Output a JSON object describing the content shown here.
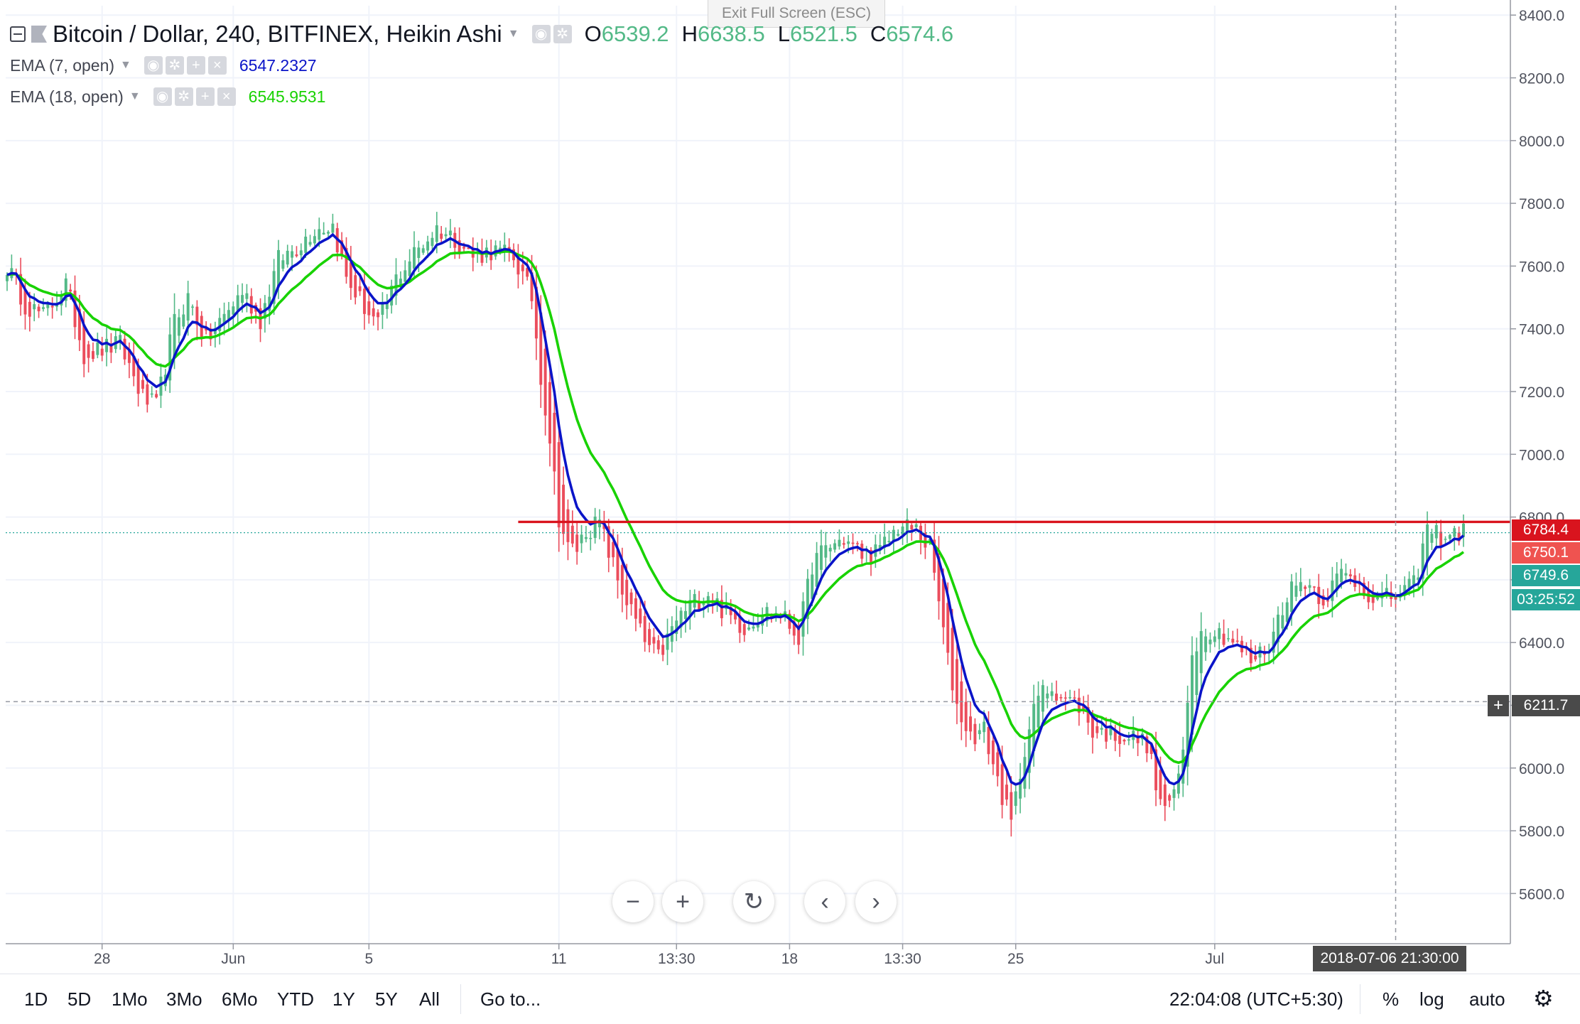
{
  "header": {
    "symbol_title": "Bitcoin / Dollar, 240, BITFINEX, Heikin Ashi",
    "ohlc": [
      {
        "label": "O",
        "value": "6539.2"
      },
      {
        "label": "H",
        "value": "6638.5"
      },
      {
        "label": "L",
        "value": "6521.5"
      },
      {
        "label": "C",
        "value": "6574.6"
      }
    ],
    "exit_fullscreen": "Exit Full Screen (ESC)"
  },
  "indicators": [
    {
      "label": "EMA (7, open)",
      "value": "6547.2327",
      "color": "#0a14c8"
    },
    {
      "label": "EMA (18, open)",
      "value": "6545.9531",
      "color": "#18d200"
    }
  ],
  "price_tags": [
    {
      "value": "6784.4",
      "color": "#d9141e"
    },
    {
      "value": "6750.1",
      "color": "#ef5350"
    },
    {
      "value": "6749.6",
      "color": "#26a69a"
    },
    {
      "value": "03:25:52",
      "color": "#26a69a"
    },
    {
      "value": "6211.7",
      "color": "#4a4a4a"
    }
  ],
  "crosshair_date": "2018-07-06 21:30:00",
  "controls": {
    "zoom_out": "−",
    "zoom_in": "+",
    "reset": "↻",
    "scroll_left": "‹",
    "scroll_right": "›"
  },
  "bottom_bar": {
    "timeframes": [
      "1D",
      "5D",
      "1Mo",
      "3Mo",
      "6Mo",
      "YTD",
      "1Y",
      "5Y",
      "All"
    ],
    "goto": "Go to...",
    "clock": "22:04:08 (UTC+5:30)",
    "percent": "%",
    "log": "log",
    "auto": "auto",
    "settings_icon": "gear-icon"
  },
  "chart_data": {
    "type": "candlestick",
    "title": "Bitcoin / Dollar, 240, BITFINEX, Heikin Ashi",
    "y_ticks": [
      5600,
      5800,
      6000,
      6200,
      6400,
      6600,
      6800,
      7000,
      7200,
      7400,
      7600,
      7800,
      8000,
      8200,
      8400
    ],
    "y_tick_labels": [
      "5600.0",
      "5800.0",
      "6000.0",
      "6200.0",
      "6400.0",
      "6600.0",
      "6800.0",
      "7000.0",
      "7200.0",
      "7400.0",
      "7600.0",
      "7800.0",
      "8000.0",
      "8200.0",
      "8400.0"
    ],
    "ylim": [
      5440,
      8430
    ],
    "x_labels": [
      {
        "label": "28",
        "bar": 21
      },
      {
        "label": "Jun",
        "bar": 50
      },
      {
        "label": "5",
        "bar": 80
      },
      {
        "label": "11",
        "bar": 122
      },
      {
        "label": "13:30",
        "bar": 148
      },
      {
        "label": "18",
        "bar": 173
      },
      {
        "label": "13:30",
        "bar": 198
      },
      {
        "label": "25",
        "bar": 223
      },
      {
        "label": "Jul",
        "bar": 267
      },
      {
        "label": "2018-07-06 21:30:00",
        "bar": 307
      }
    ],
    "bar_count": 323,
    "grid": true,
    "colors": {
      "up": "#53b987",
      "down": "#eb4d5c",
      "ema7": "#0a14c8",
      "ema18": "#18d200",
      "resistance": "#d9141e"
    },
    "resistance_line": {
      "price": 6784.4,
      "from_bar": 113
    },
    "anchor_closes": [
      [
        0,
        7600
      ],
      [
        4,
        7480
      ],
      [
        8,
        7440
      ],
      [
        13,
        7540
      ],
      [
        17,
        7320
      ],
      [
        25,
        7350
      ],
      [
        30,
        7180
      ],
      [
        33,
        7150
      ],
      [
        37,
        7420
      ],
      [
        40,
        7500
      ],
      [
        44,
        7360
      ],
      [
        48,
        7440
      ],
      [
        52,
        7520
      ],
      [
        56,
        7430
      ],
      [
        60,
        7620
      ],
      [
        64,
        7660
      ],
      [
        68,
        7720
      ],
      [
        72,
        7730
      ],
      [
        75,
        7560
      ],
      [
        79,
        7470
      ],
      [
        82,
        7410
      ],
      [
        86,
        7560
      ],
      [
        90,
        7640
      ],
      [
        95,
        7720
      ],
      [
        99,
        7690
      ],
      [
        103,
        7630
      ],
      [
        107,
        7650
      ],
      [
        112,
        7630
      ],
      [
        116,
        7500
      ],
      [
        118,
        7250
      ],
      [
        120,
        7050
      ],
      [
        122,
        6800
      ],
      [
        124,
        6700
      ],
      [
        126,
        6700
      ],
      [
        128,
        6760
      ],
      [
        131,
        6780
      ],
      [
        135,
        6600
      ],
      [
        138,
        6500
      ],
      [
        141,
        6400
      ],
      [
        144,
        6350
      ],
      [
        148,
        6470
      ],
      [
        151,
        6520
      ],
      [
        155,
        6560
      ],
      [
        159,
        6490
      ],
      [
        163,
        6450
      ],
      [
        167,
        6500
      ],
      [
        171,
        6490
      ],
      [
        175,
        6420
      ],
      [
        178,
        6650
      ],
      [
        181,
        6700
      ],
      [
        185,
        6730
      ],
      [
        189,
        6680
      ],
      [
        193,
        6690
      ],
      [
        197,
        6770
      ],
      [
        201,
        6760
      ],
      [
        204,
        6700
      ],
      [
        206,
        6530
      ],
      [
        208,
        6340
      ],
      [
        210,
        6200
      ],
      [
        213,
        6100
      ],
      [
        216,
        6120
      ],
      [
        219,
        5960
      ],
      [
        222,
        5820
      ],
      [
        225,
        6070
      ],
      [
        228,
        6230
      ],
      [
        231,
        6260
      ],
      [
        234,
        6220
      ],
      [
        237,
        6200
      ],
      [
        240,
        6120
      ],
      [
        244,
        6110
      ],
      [
        248,
        6100
      ],
      [
        252,
        6080
      ],
      [
        255,
        5880
      ],
      [
        258,
        5900
      ],
      [
        260,
        6050
      ],
      [
        262,
        6380
      ],
      [
        265,
        6450
      ],
      [
        270,
        6420
      ],
      [
        275,
        6340
      ],
      [
        279,
        6390
      ],
      [
        283,
        6560
      ],
      [
        287,
        6600
      ],
      [
        291,
        6540
      ],
      [
        295,
        6620
      ],
      [
        299,
        6590
      ],
      [
        303,
        6530
      ],
      [
        307,
        6550
      ],
      [
        311,
        6580
      ],
      [
        314,
        6760
      ],
      [
        317,
        6740
      ],
      [
        322,
        6750
      ]
    ],
    "ema7_last": 6547.2327,
    "ema18_last": 6545.9531
  }
}
